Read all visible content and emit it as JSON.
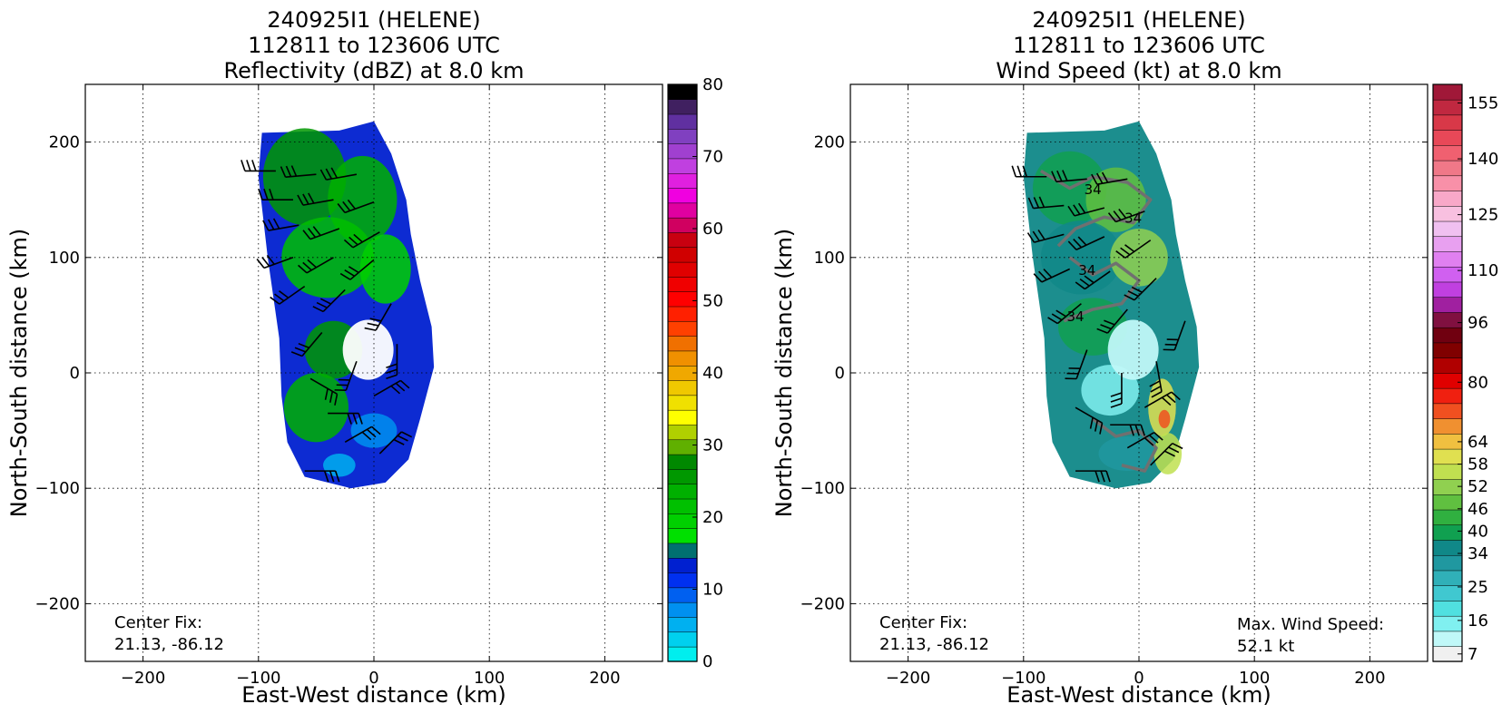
{
  "chart_data": [
    {
      "type": "heatmap",
      "title": [
        "240925I1 (HELENE)",
        "112811 to 123606 UTC",
        "Reflectivity (dBZ) at 8.0 km"
      ],
      "xlabel": "East-West distance (km)",
      "ylabel": "North-South distance (km)",
      "xlim": [
        -250,
        250
      ],
      "ylim": [
        -250,
        250
      ],
      "xticks": [
        -200,
        -100,
        0,
        100,
        200
      ],
      "yticks": [
        -200,
        -100,
        0,
        100,
        200
      ],
      "xtick_labels": [
        "−200",
        "−100",
        "0",
        "100",
        "200"
      ],
      "ytick_labels": [
        "−200",
        "−100",
        "0",
        "100",
        "200"
      ],
      "grid": true,
      "annotation": [
        "Center Fix:",
        "21.13, -86.12"
      ],
      "colorbar": {
        "min": 0,
        "max": 80,
        "ticks": [
          0,
          10,
          20,
          30,
          40,
          50,
          60,
          70,
          80
        ],
        "colors": [
          "#00eeee",
          "#00d0ee",
          "#00b0f0",
          "#0090f0",
          "#0060f0",
          "#0030f0",
          "#0020d0",
          "#007070",
          "#00e000",
          "#00d000",
          "#00c000",
          "#00b000",
          "#009800",
          "#008800",
          "#60b000",
          "#b0d000",
          "#ffff00",
          "#f0e000",
          "#f0c800",
          "#f0a800",
          "#f09000",
          "#f07000",
          "#ff4000",
          "#ff2000",
          "#ff0000",
          "#f00000",
          "#e00000",
          "#d00000",
          "#c80010",
          "#d00060",
          "#e000a0",
          "#f000e0",
          "#e020e0",
          "#c040e0",
          "#a040d0",
          "#8040c0",
          "#6030a0",
          "#402060",
          "#000000"
        ]
      },
      "field": [
        {
          "x": -60,
          "y": 170,
          "rx": 36,
          "ry": 42,
          "level": 12
        },
        {
          "x": -10,
          "y": 150,
          "rx": 30,
          "ry": 38,
          "level": 11
        },
        {
          "x": -40,
          "y": 100,
          "rx": 40,
          "ry": 35,
          "level": 10
        },
        {
          "x": 10,
          "y": 90,
          "rx": 22,
          "ry": 30,
          "level": 9
        },
        {
          "x": -35,
          "y": 20,
          "rx": 25,
          "ry": 25,
          "level": 12
        },
        {
          "x": -50,
          "y": -30,
          "rx": 28,
          "ry": 30,
          "level": 11
        },
        {
          "x": 0,
          "y": -50,
          "rx": 20,
          "ry": 15,
          "level": 3
        },
        {
          "x": -30,
          "y": -80,
          "rx": 14,
          "ry": 10,
          "level": 2
        }
      ],
      "barbs": [
        {
          "x": -85,
          "y": 175,
          "dir": 270
        },
        {
          "x": -50,
          "y": 172,
          "dir": 265
        },
        {
          "x": -15,
          "y": 172,
          "dir": 260
        },
        {
          "x": -70,
          "y": 150,
          "dir": 270
        },
        {
          "x": -35,
          "y": 150,
          "dir": 260
        },
        {
          "x": 0,
          "y": 148,
          "dir": 250
        },
        {
          "x": -65,
          "y": 128,
          "dir": 260
        },
        {
          "x": -30,
          "y": 125,
          "dir": 250
        },
        {
          "x": 5,
          "y": 122,
          "dir": 240
        },
        {
          "x": -70,
          "y": 100,
          "dir": 250
        },
        {
          "x": -35,
          "y": 100,
          "dir": 240
        },
        {
          "x": 0,
          "y": 98,
          "dir": 230
        },
        {
          "x": -60,
          "y": 75,
          "dir": 235
        },
        {
          "x": -25,
          "y": 72,
          "dir": 225
        },
        {
          "x": 15,
          "y": 60,
          "dir": 210
        },
        {
          "x": -45,
          "y": 35,
          "dir": 220
        },
        {
          "x": -15,
          "y": 10,
          "dir": 200
        },
        {
          "x": 20,
          "y": 25,
          "dir": 180
        },
        {
          "x": -55,
          "y": -5,
          "dir": 120
        },
        {
          "x": -40,
          "y": -35,
          "dir": 90
        },
        {
          "x": 0,
          "y": -20,
          "dir": 60
        },
        {
          "x": -25,
          "y": -60,
          "dir": 60
        },
        {
          "x": 5,
          "y": -70,
          "dir": 45
        },
        {
          "x": -60,
          "y": -85,
          "dir": 90
        }
      ]
    },
    {
      "type": "heatmap",
      "title": [
        "240925I1 (HELENE)",
        "112811 to 123606 UTC",
        "Wind Speed (kt) at 8.0 km"
      ],
      "xlabel": "East-West distance (km)",
      "ylabel": "North-South distance (km)",
      "xlim": [
        -250,
        250
      ],
      "ylim": [
        -250,
        250
      ],
      "xticks": [
        -200,
        -100,
        0,
        100,
        200
      ],
      "yticks": [
        -200,
        -100,
        0,
        100,
        200
      ],
      "xtick_labels": [
        "−200",
        "−100",
        "0",
        "100",
        "200"
      ],
      "ytick_labels": [
        "−200",
        "−100",
        "0",
        "100",
        "200"
      ],
      "grid": true,
      "annotation": [
        "Center Fix:",
        "21.13, -86.12"
      ],
      "annotation2": [
        "Max. Wind Speed:",
        "52.1 kt"
      ],
      "contour_label": "34",
      "colorbar": {
        "min": 5,
        "max": 160,
        "ticks": [
          7,
          16,
          25,
          34,
          40,
          46,
          52,
          58,
          64,
          80,
          96,
          110,
          125,
          140,
          155
        ],
        "colors": [
          "#f0f0f0",
          "#c0f8f8",
          "#80f0f0",
          "#50e0e0",
          "#40c8d0",
          "#30b0b8",
          "#2098a0",
          "#108888",
          "#10a050",
          "#30b040",
          "#60c040",
          "#90d050",
          "#c0e050",
          "#e0e050",
          "#f0c040",
          "#f09030",
          "#f05020",
          "#f02010",
          "#e00000",
          "#b00000",
          "#800000",
          "#700010",
          "#801040",
          "#a020a0",
          "#c040e0",
          "#d060f0",
          "#e080f0",
          "#e8a0f0",
          "#f0c0f0",
          "#f8c0e0",
          "#f8a8c8",
          "#f890a8",
          "#f07888",
          "#f06070",
          "#e84858",
          "#d83848",
          "#c02840",
          "#a01838"
        ]
      },
      "field": [
        {
          "x": -60,
          "y": 160,
          "rx": 32,
          "ry": 32,
          "level": 8
        },
        {
          "x": -20,
          "y": 150,
          "rx": 26,
          "ry": 28,
          "level": 10
        },
        {
          "x": -50,
          "y": 100,
          "rx": 35,
          "ry": 32,
          "level": 7
        },
        {
          "x": 0,
          "y": 100,
          "rx": 25,
          "ry": 25,
          "level": 11
        },
        {
          "x": -40,
          "y": 40,
          "rx": 30,
          "ry": 25,
          "level": 8
        },
        {
          "x": -25,
          "y": -15,
          "rx": 25,
          "ry": 22,
          "level": 2
        },
        {
          "x": 20,
          "y": -30,
          "rx": 12,
          "ry": 25,
          "level": 13
        },
        {
          "x": 22,
          "y": -40,
          "rx": 5,
          "ry": 8,
          "level": 16
        },
        {
          "x": -10,
          "y": -70,
          "rx": 25,
          "ry": 15,
          "level": 6
        },
        {
          "x": 25,
          "y": -70,
          "rx": 12,
          "ry": 18,
          "level": 12
        }
      ],
      "barbs": [
        {
          "x": -80,
          "y": 170,
          "dir": 270
        },
        {
          "x": -45,
          "y": 168,
          "dir": 265
        },
        {
          "x": -10,
          "y": 168,
          "dir": 260
        },
        {
          "x": -65,
          "y": 145,
          "dir": 265
        },
        {
          "x": -30,
          "y": 143,
          "dir": 255
        },
        {
          "x": 5,
          "y": 140,
          "dir": 250
        },
        {
          "x": -65,
          "y": 120,
          "dir": 255
        },
        {
          "x": -30,
          "y": 118,
          "dir": 245
        },
        {
          "x": 10,
          "y": 115,
          "dir": 235
        },
        {
          "x": -60,
          "y": 90,
          "dir": 245
        },
        {
          "x": -25,
          "y": 88,
          "dir": 235
        },
        {
          "x": 15,
          "y": 82,
          "dir": 225
        },
        {
          "x": -50,
          "y": 60,
          "dir": 230
        },
        {
          "x": -10,
          "y": 55,
          "dir": 220
        },
        {
          "x": 40,
          "y": 45,
          "dir": 200
        },
        {
          "x": -45,
          "y": 20,
          "dir": 200
        },
        {
          "x": -15,
          "y": 0,
          "dir": 180
        },
        {
          "x": 15,
          "y": 10,
          "dir": 170
        },
        {
          "x": -55,
          "y": -30,
          "dir": 120
        },
        {
          "x": -25,
          "y": -45,
          "dir": 90
        },
        {
          "x": 5,
          "y": -30,
          "dir": 60
        },
        {
          "x": -10,
          "y": -65,
          "dir": 60
        },
        {
          "x": 10,
          "y": -80,
          "dir": 45
        },
        {
          "x": -55,
          "y": -85,
          "dir": 90
        }
      ]
    }
  ]
}
